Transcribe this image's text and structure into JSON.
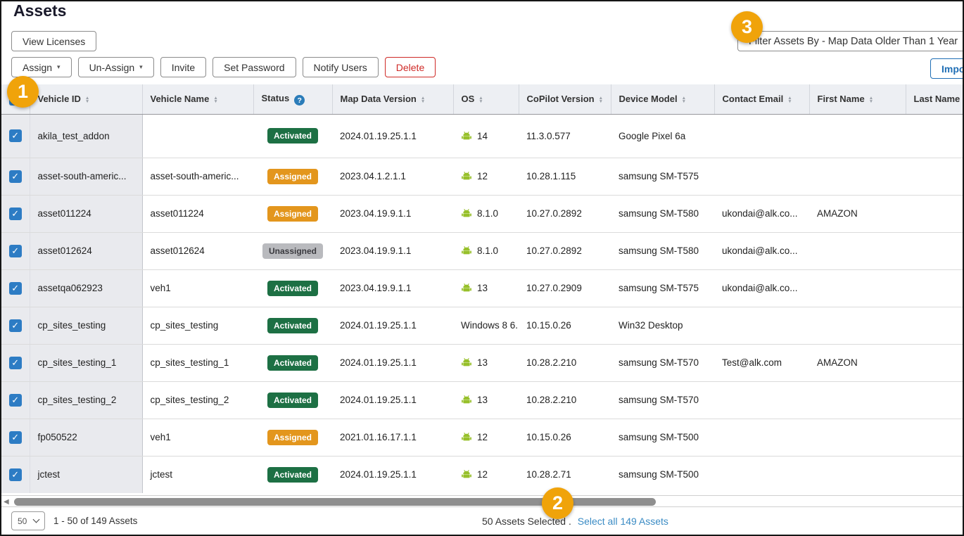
{
  "page": {
    "title": "Assets"
  },
  "toolbar": {
    "view_licenses_label": "View Licenses",
    "assign_label": "Assign",
    "unassign_label": "Un-Assign",
    "invite_label": "Invite",
    "set_password_label": "Set Password",
    "notify_users_label": "Notify Users",
    "delete_label": "Delete",
    "filter_label": "Filter Assets By - Map Data Older Than 1 Year",
    "import_label": "Import"
  },
  "callouts": {
    "step1": "1",
    "step2": "2",
    "step3": "3",
    "color": "#F0A30A"
  },
  "table": {
    "columns": [
      {
        "label": "Vehicle ID",
        "sort": true
      },
      {
        "label": "Vehicle Name",
        "sort": true
      },
      {
        "label": "Status",
        "help": true
      },
      {
        "label": "Map Data Version",
        "sort": true
      },
      {
        "label": "OS",
        "sort": true
      },
      {
        "label": "CoPilot Version",
        "sort": true
      },
      {
        "label": "Device Model",
        "sort": true
      },
      {
        "label": "Contact Email",
        "sort": true
      },
      {
        "label": "First Name",
        "sort": true
      },
      {
        "label": "Last Name",
        "sort": true
      }
    ],
    "rows": [
      {
        "selected": true,
        "vehicle_id": "akila_test_addon",
        "vehicle_name": "",
        "status": "Activated",
        "map_data_version": "2024.01.19.25.1.1",
        "os": "14",
        "os_android": true,
        "copilot_version": "11.3.0.577",
        "device_model": "Google Pixel 6a",
        "contact_email": "",
        "first_name": "",
        "last_name": ""
      },
      {
        "selected": true,
        "vehicle_id": "asset-south-americ...",
        "vehicle_name": "asset-south-americ...",
        "status": "Assigned",
        "map_data_version": "2023.04.1.2.1.1",
        "os": "12",
        "os_android": true,
        "copilot_version": "10.28.1.115",
        "device_model": "samsung SM-T575",
        "contact_email": "",
        "first_name": "",
        "last_name": ""
      },
      {
        "selected": true,
        "vehicle_id": "asset011224",
        "vehicle_name": "asset011224",
        "status": "Assigned",
        "map_data_version": "2023.04.19.9.1.1",
        "os": "8.1.0",
        "os_android": true,
        "copilot_version": "10.27.0.2892",
        "device_model": "samsung SM-T580",
        "contact_email": "ukondai@alk.co...",
        "first_name": "AMAZON",
        "last_name": ""
      },
      {
        "selected": true,
        "vehicle_id": "asset012624",
        "vehicle_name": "asset012624",
        "status": "Unassigned",
        "map_data_version": "2023.04.19.9.1.1",
        "os": "8.1.0",
        "os_android": true,
        "copilot_version": "10.27.0.2892",
        "device_model": "samsung SM-T580",
        "contact_email": "ukondai@alk.co...",
        "first_name": "",
        "last_name": ""
      },
      {
        "selected": true,
        "vehicle_id": "assetqa062923",
        "vehicle_name": "veh1",
        "status": "Activated",
        "map_data_version": "2023.04.19.9.1.1",
        "os": "13",
        "os_android": true,
        "copilot_version": "10.27.0.2909",
        "device_model": "samsung SM-T575",
        "contact_email": "ukondai@alk.co...",
        "first_name": "",
        "last_name": ""
      },
      {
        "selected": true,
        "vehicle_id": "cp_sites_testing",
        "vehicle_name": "cp_sites_testing",
        "status": "Activated",
        "map_data_version": "2024.01.19.25.1.1",
        "os": "Windows 8 6.",
        "os_android": false,
        "copilot_version": "10.15.0.26",
        "device_model": "Win32 Desktop",
        "contact_email": "",
        "first_name": "",
        "last_name": ""
      },
      {
        "selected": true,
        "vehicle_id": "cp_sites_testing_1",
        "vehicle_name": "cp_sites_testing_1",
        "status": "Activated",
        "map_data_version": "2024.01.19.25.1.1",
        "os": "13",
        "os_android": true,
        "copilot_version": "10.28.2.210",
        "device_model": "samsung SM-T570",
        "contact_email": "Test@alk.com",
        "first_name": "AMAZON",
        "last_name": ""
      },
      {
        "selected": true,
        "vehicle_id": "cp_sites_testing_2",
        "vehicle_name": "cp_sites_testing_2",
        "status": "Activated",
        "map_data_version": "2024.01.19.25.1.1",
        "os": "13",
        "os_android": true,
        "copilot_version": "10.28.2.210",
        "device_model": "samsung SM-T570",
        "contact_email": "",
        "first_name": "",
        "last_name": ""
      },
      {
        "selected": true,
        "vehicle_id": "fp050522",
        "vehicle_name": "veh1",
        "status": "Assigned",
        "map_data_version": "2021.01.16.17.1.1",
        "os": "12",
        "os_android": true,
        "copilot_version": "10.15.0.26",
        "device_model": "samsung SM-T500",
        "contact_email": "",
        "first_name": "",
        "last_name": ""
      },
      {
        "selected": true,
        "vehicle_id": "jctest",
        "vehicle_name": "jctest",
        "status": "Activated",
        "map_data_version": "2024.01.19.25.1.1",
        "os": "12",
        "os_android": true,
        "copilot_version": "10.28.2.71",
        "device_model": "samsung SM-T500",
        "contact_email": "",
        "first_name": "",
        "last_name": ""
      }
    ]
  },
  "footer": {
    "page_size": "50",
    "range_text": "1 - 50 of 149 Assets",
    "selected_text": "50 Assets Selected .",
    "select_all_label": "Select all 149 Assets"
  },
  "colors": {
    "callout_yellow": "#F0A30A",
    "status_activated": "#1D7044",
    "status_assigned": "#E3961D",
    "status_unassigned": "#B9BABE",
    "checkbox_blue": "#2D7CC4",
    "link_blue": "#3A8BC4",
    "android_green": "#97C02A",
    "delete_red": "#CF2A27",
    "import_blue": "#1F6EB5"
  }
}
